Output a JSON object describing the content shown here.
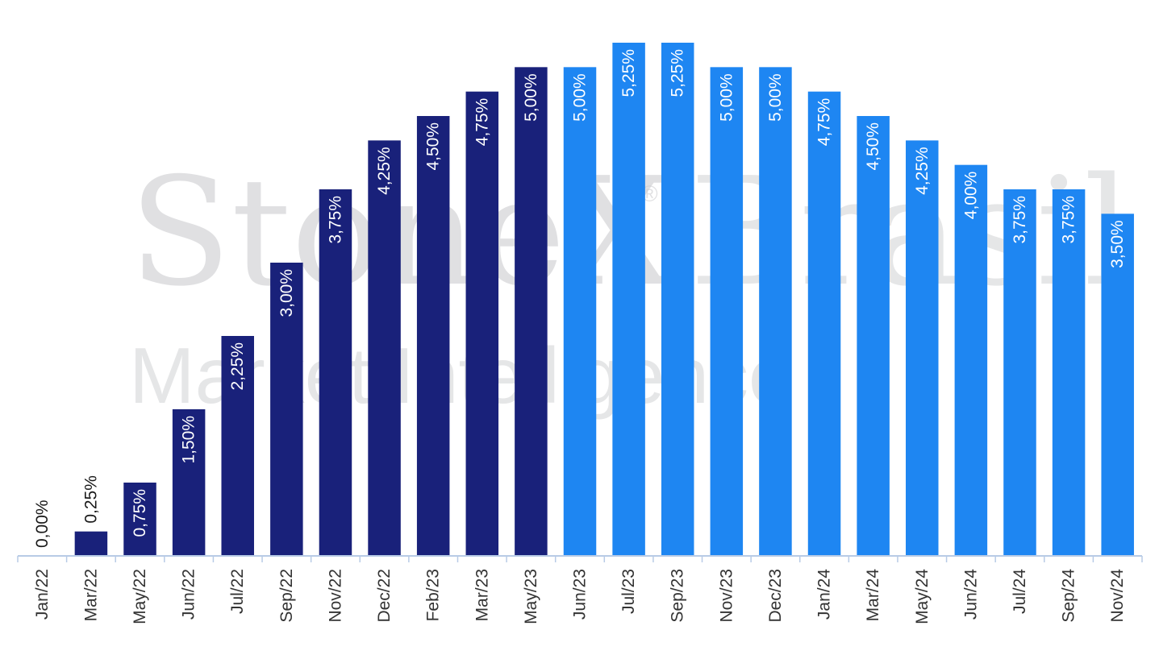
{
  "colors": {
    "series_dark": "#19217a",
    "series_light": "#1e86f2",
    "axis": "#b8cbe6",
    "label_outside": "#1a1a1a",
    "label_inside": "#ffffff",
    "tick_text": "#333333",
    "watermark": "#c7c8cb"
  },
  "watermark": {
    "brand": "StoneX",
    "registered": "®",
    "region": "Brasil",
    "tagline": "Market Intelligence"
  },
  "chart_data": {
    "type": "bar",
    "title": "",
    "xlabel": "",
    "ylabel": "",
    "ylim": [
      0,
      5.5
    ],
    "grid": false,
    "categories": [
      "Jan/22",
      "Mar/22",
      "May/22",
      "Jun/22",
      "Jul/22",
      "Sep/22",
      "Nov/22",
      "Dec/22",
      "Feb/23",
      "Mar/23",
      "May/23",
      "Jun/23",
      "Jul/23",
      "Sep/23",
      "Nov/23",
      "Dec/23",
      "Jan/24",
      "Mar/24",
      "May/24",
      "Jun/24",
      "Jul/24",
      "Sep/24",
      "Nov/24"
    ],
    "values": [
      0,
      0.25,
      0.75,
      1.5,
      2.25,
      3.0,
      3.75,
      4.25,
      4.5,
      4.75,
      5.0,
      5.0,
      5.25,
      5.25,
      5.0,
      5.0,
      4.75,
      4.5,
      4.25,
      4.0,
      3.75,
      3.75,
      3.5
    ],
    "labels": [
      "0,00%",
      "0,25%",
      "0,75%",
      "1,50%",
      "2,25%",
      "3,00%",
      "3,75%",
      "4,25%",
      "4,50%",
      "4,75%",
      "5,00%",
      "5,00%",
      "5,25%",
      "5,25%",
      "5,00%",
      "5,00%",
      "4,75%",
      "4,50%",
      "4,25%",
      "4,00%",
      "3,75%",
      "3,75%",
      "3,50%"
    ],
    "color_groups": [
      "dark",
      "dark",
      "dark",
      "dark",
      "dark",
      "dark",
      "dark",
      "dark",
      "dark",
      "dark",
      "dark",
      "light",
      "light",
      "light",
      "light",
      "light",
      "light",
      "light",
      "light",
      "light",
      "light",
      "light",
      "light"
    ]
  }
}
